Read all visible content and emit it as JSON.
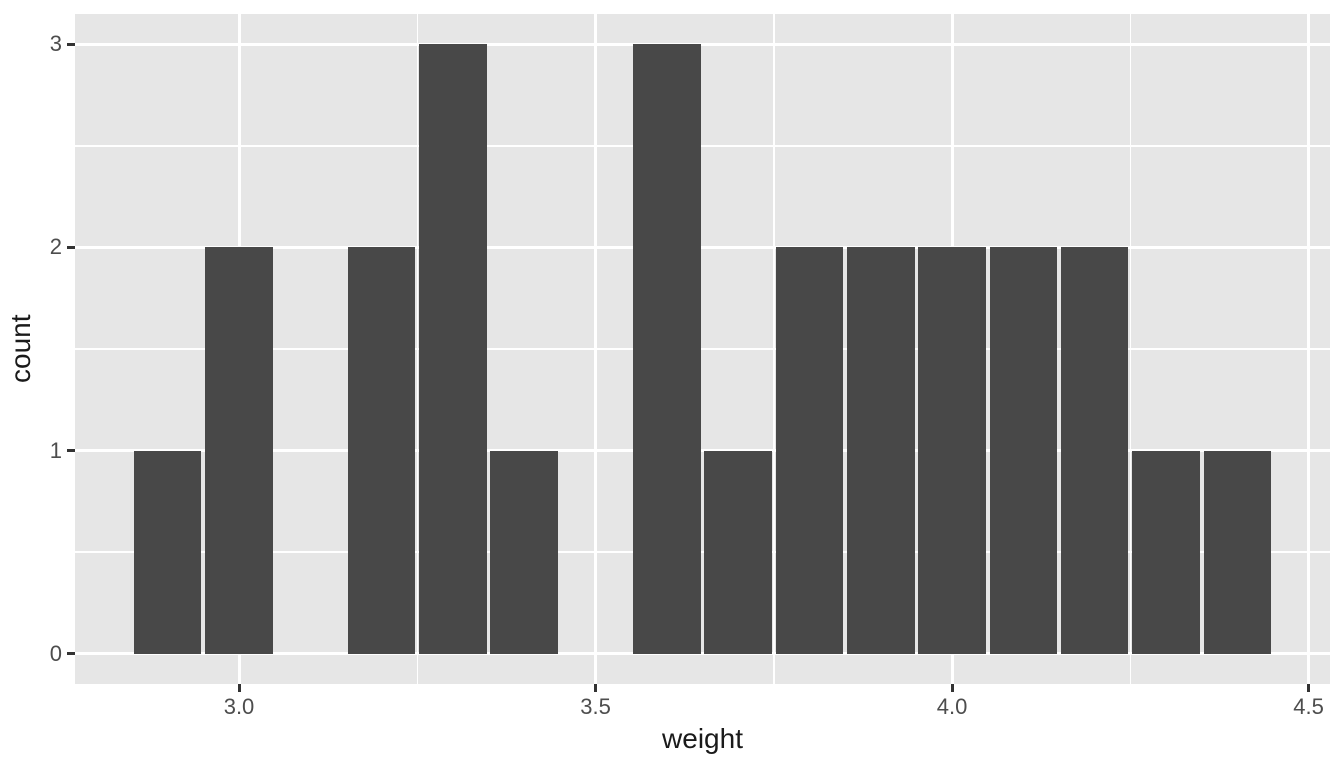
{
  "chart_data": {
    "type": "bar",
    "subtype": "histogram",
    "title": "",
    "xlabel": "weight",
    "ylabel": "count",
    "binwidth": 0.1,
    "bins": [
      {
        "center": 2.9,
        "count": 1
      },
      {
        "center": 3.0,
        "count": 2
      },
      {
        "center": 3.1,
        "count": 0
      },
      {
        "center": 3.2,
        "count": 2
      },
      {
        "center": 3.3,
        "count": 3
      },
      {
        "center": 3.4,
        "count": 1
      },
      {
        "center": 3.5,
        "count": 0
      },
      {
        "center": 3.6,
        "count": 3
      },
      {
        "center": 3.7,
        "count": 1
      },
      {
        "center": 3.8,
        "count": 2
      },
      {
        "center": 3.9,
        "count": 2
      },
      {
        "center": 4.0,
        "count": 2
      },
      {
        "center": 4.1,
        "count": 2
      },
      {
        "center": 4.2,
        "count": 2
      },
      {
        "center": 4.3,
        "count": 1
      },
      {
        "center": 4.4,
        "count": 1
      }
    ],
    "x_ticks": [
      {
        "value": 3.0,
        "label": "3.0"
      },
      {
        "value": 3.5,
        "label": "3.5"
      },
      {
        "value": 4.0,
        "label": "4.0"
      },
      {
        "value": 4.5,
        "label": "4.5"
      }
    ],
    "y_ticks": [
      {
        "value": 0,
        "label": "0"
      },
      {
        "value": 1,
        "label": "1"
      },
      {
        "value": 2,
        "label": "2"
      },
      {
        "value": 3,
        "label": "3"
      }
    ],
    "x_minor_ticks": [
      3.25,
      3.75,
      4.25
    ],
    "y_minor_ticks": [
      0.5,
      1.5,
      2.5
    ],
    "xlim": [
      2.77,
      4.53
    ],
    "ylim": [
      -0.15,
      3.15
    ],
    "grid": true,
    "legend": false,
    "colors": {
      "bar_fill": "#484848",
      "panel_background": "#E6E6E6",
      "gridline": "#FFFFFF",
      "tick_label": "#4D4D4D",
      "axis_title": "#1A1A1A",
      "tick_mark": "#333333",
      "figure_background": "#FFFFFF"
    }
  }
}
